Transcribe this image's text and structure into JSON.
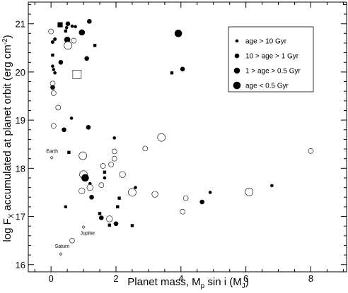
{
  "chart_data": {
    "type": "scatter",
    "xlabel_parts": [
      "Planet mass, M",
      "p",
      " sin i (M",
      "J",
      ")"
    ],
    "ylabel_parts": [
      "log F",
      "X",
      " accumulated at planet orbit (erg cm",
      "-2",
      ")"
    ],
    "xlim": [
      -0.7,
      9.1
    ],
    "ylim": [
      15.85,
      21.45
    ],
    "xticks": [
      0,
      2,
      4,
      6,
      8
    ],
    "yticks": [
      16,
      17,
      18,
      19,
      20,
      21
    ],
    "legend": {
      "position": "top-right",
      "entries": [
        {
          "marker": "dot-small",
          "label": "age > 10 Gyr"
        },
        {
          "marker": "dot-medium",
          "label": "10 > age > 1 Gyr"
        },
        {
          "marker": "dot-large",
          "label": "1 > age > 0.5 Gyr"
        },
        {
          "marker": "dot-xlarge",
          "label": "age < 0.5 Gyr"
        }
      ]
    },
    "points": [
      {
        "x": 0.0,
        "y": 20.84,
        "m": "o",
        "s": 3.5
      },
      {
        "x": 0.05,
        "y": 20.62,
        "m": "f",
        "s": 2.5
      },
      {
        "x": 0.12,
        "y": 20.68,
        "m": "f",
        "s": 2.5
      },
      {
        "x": 0.28,
        "y": 20.98,
        "m": "q",
        "s": 3.6
      },
      {
        "x": 0.48,
        "y": 20.92,
        "m": "f",
        "s": 2.3
      },
      {
        "x": 0.52,
        "y": 21.0,
        "m": "f",
        "s": 3.3
      },
      {
        "x": 0.65,
        "y": 20.95,
        "m": "f",
        "s": 2.3
      },
      {
        "x": 0.75,
        "y": 20.94,
        "m": "f",
        "s": 2.3
      },
      {
        "x": 1.18,
        "y": 21.05,
        "m": "f",
        "s": 3.3
      },
      {
        "x": 0.45,
        "y": 20.85,
        "m": "q",
        "s": 2.2
      },
      {
        "x": 0.95,
        "y": 20.82,
        "m": "f",
        "s": 4.3
      },
      {
        "x": 0.5,
        "y": 20.67,
        "m": "f",
        "s": 4.3
      },
      {
        "x": 0.7,
        "y": 20.65,
        "m": "o",
        "s": 3.5
      },
      {
        "x": 0.52,
        "y": 20.55,
        "m": "o",
        "s": 5.5
      },
      {
        "x": 1.35,
        "y": 20.55,
        "m": "q",
        "s": 2.2
      },
      {
        "x": 0.05,
        "y": 20.35,
        "m": "q",
        "s": 2.2
      },
      {
        "x": 1.1,
        "y": 20.28,
        "m": "f",
        "s": 3.3
      },
      {
        "x": 0.3,
        "y": 20.2,
        "m": "f",
        "s": 3.3
      },
      {
        "x": 0.05,
        "y": 20.12,
        "m": "f",
        "s": 2.3
      },
      {
        "x": 0.08,
        "y": 20.05,
        "m": "f",
        "s": 2.3
      },
      {
        "x": 0.12,
        "y": 19.98,
        "m": "f",
        "s": 2.3
      },
      {
        "x": 0.8,
        "y": 19.95,
        "m": "Q",
        "s": 6.0
      },
      {
        "x": 0.05,
        "y": 19.76,
        "m": "o",
        "s": 3.5
      },
      {
        "x": 0.05,
        "y": 19.68,
        "m": "f",
        "s": 3.3
      },
      {
        "x": 0.08,
        "y": 19.56,
        "m": "o",
        "s": 3.5
      },
      {
        "x": 0.22,
        "y": 19.26,
        "m": "o",
        "s": 3.5
      },
      {
        "x": 0.63,
        "y": 19.04,
        "m": "f",
        "s": 2.3
      },
      {
        "x": 0.08,
        "y": 18.88,
        "m": "o",
        "s": 3.5
      },
      {
        "x": 0.4,
        "y": 18.8,
        "m": "f",
        "s": 3.3
      },
      {
        "x": 1.15,
        "y": 18.85,
        "m": "f",
        "s": 3.3
      },
      {
        "x": 1.95,
        "y": 18.63,
        "m": "f",
        "s": 2.3
      },
      {
        "x": 3.4,
        "y": 18.64,
        "m": "o",
        "s": 5.5
      },
      {
        "x": 3.72,
        "y": 19.98,
        "m": "q",
        "s": 2.2
      },
      {
        "x": 4.05,
        "y": 20.06,
        "m": "f",
        "s": 3.3
      },
      {
        "x": 3.92,
        "y": 20.8,
        "m": "f",
        "s": 5.3
      },
      {
        "x": 0.55,
        "y": 18.33,
        "m": "q",
        "s": 2.2
      },
      {
        "x": 0.98,
        "y": 18.26,
        "m": "o",
        "s": 5.5
      },
      {
        "x": 1.95,
        "y": 18.35,
        "m": "o",
        "s": 3.5
      },
      {
        "x": 1.95,
        "y": 18.2,
        "m": "o",
        "s": 3.5
      },
      {
        "x": 2.9,
        "y": 18.41,
        "m": "o",
        "s": 3.5
      },
      {
        "x": 1.6,
        "y": 18.05,
        "m": "o",
        "s": 3.5
      },
      {
        "x": 1.85,
        "y": 18.08,
        "m": "o",
        "s": 3.5
      },
      {
        "x": 0.02,
        "y": 18.22,
        "m": "d",
        "s": 2.0
      },
      {
        "x": 1.0,
        "y": 17.87,
        "m": "o",
        "s": 5.5
      },
      {
        "x": 1.65,
        "y": 17.92,
        "m": "q",
        "s": 2.2
      },
      {
        "x": 2.2,
        "y": 17.87,
        "m": "o",
        "s": 4.3
      },
      {
        "x": 1.65,
        "y": 17.8,
        "m": "f",
        "s": 2.3
      },
      {
        "x": 1.05,
        "y": 17.8,
        "m": "f",
        "s": 5.3
      },
      {
        "x": 1.2,
        "y": 17.68,
        "m": "f",
        "s": 2.3
      },
      {
        "x": 1.55,
        "y": 17.65,
        "m": "o",
        "s": 3.5
      },
      {
        "x": 1.2,
        "y": 17.6,
        "m": "o",
        "s": 4.3
      },
      {
        "x": 0.95,
        "y": 17.53,
        "m": "o",
        "s": 4.3
      },
      {
        "x": 2.5,
        "y": 17.5,
        "m": "o",
        "s": 5.5
      },
      {
        "x": 2.6,
        "y": 17.6,
        "m": "f",
        "s": 2.3
      },
      {
        "x": 3.2,
        "y": 17.46,
        "m": "o",
        "s": 4.3
      },
      {
        "x": 4.9,
        "y": 17.5,
        "m": "f",
        "s": 2.3
      },
      {
        "x": 6.1,
        "y": 17.51,
        "m": "o",
        "s": 5.5
      },
      {
        "x": 6.8,
        "y": 17.64,
        "m": "f",
        "s": 2.3
      },
      {
        "x": 4.15,
        "y": 17.38,
        "m": "o",
        "s": 3.5
      },
      {
        "x": 1.25,
        "y": 17.4,
        "m": "f",
        "s": 3.3
      },
      {
        "x": 2.1,
        "y": 17.38,
        "m": "q",
        "s": 2.2
      },
      {
        "x": 0.45,
        "y": 17.2,
        "m": "f",
        "s": 2.3
      },
      {
        "x": 2.05,
        "y": 17.2,
        "m": "q",
        "s": 2.2
      },
      {
        "x": 4.65,
        "y": 17.3,
        "m": "f",
        "s": 3.3
      },
      {
        "x": 4.05,
        "y": 17.1,
        "m": "o",
        "s": 3.5
      },
      {
        "x": 1.5,
        "y": 17.06,
        "m": "q",
        "s": 2.2
      },
      {
        "x": 1.55,
        "y": 16.97,
        "m": "f",
        "s": 3.3
      },
      {
        "x": 1.8,
        "y": 16.95,
        "m": "o",
        "s": 4.3
      },
      {
        "x": 2.0,
        "y": 16.85,
        "m": "f",
        "s": 3.3
      },
      {
        "x": 1.8,
        "y": 16.82,
        "m": "q",
        "s": 2.2
      },
      {
        "x": 2.5,
        "y": 16.81,
        "m": "q",
        "s": 2.2
      },
      {
        "x": 1.0,
        "y": 16.78,
        "m": "d",
        "s": 2.0
      },
      {
        "x": 0.65,
        "y": 16.5,
        "m": "o",
        "s": 3.5
      },
      {
        "x": 8.0,
        "y": 18.36,
        "m": "o",
        "s": 3.5
      },
      {
        "x": 0.3,
        "y": 16.22,
        "m": "d",
        "s": 2.0
      }
    ],
    "annotations": [
      {
        "text": "Earth",
        "x": -0.15,
        "y": 18.32
      },
      {
        "text": "Jupiter",
        "x": 0.9,
        "y": 16.62
      },
      {
        "text": "Saturn",
        "x": 0.12,
        "y": 16.35
      }
    ]
  }
}
